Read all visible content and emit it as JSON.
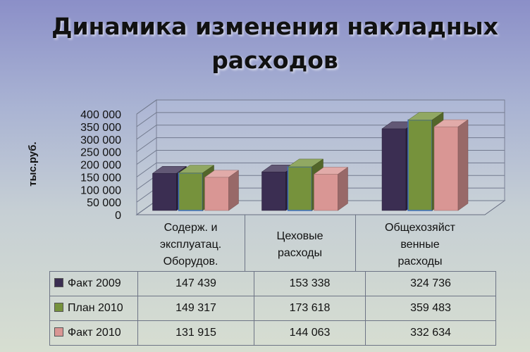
{
  "title": "Динамика изменения накладных расходов",
  "chart_data": {
    "type": "bar",
    "title": "Динамика изменения накладных расходов",
    "ylabel": "тыс.руб.",
    "xlabel": "",
    "ylim": [
      0,
      400000
    ],
    "yticks": [
      "0",
      "50 000",
      "100 000",
      "150 000",
      "200 000",
      "250 000",
      "300 000",
      "350 000",
      "400 000"
    ],
    "grid": true,
    "legend": "table-below",
    "categories": [
      "Содерж. и эксплуатац. Оборудов.",
      "Цеховые расходы",
      "Общехозяйст венные расходы"
    ],
    "category_lines": [
      [
        "Содерж. и",
        "эксплуатац.",
        "Оборудов."
      ],
      [
        "Цеховые",
        "расходы"
      ],
      [
        "Общехозяйст",
        "венные",
        "расходы"
      ]
    ],
    "series": [
      {
        "name": "Факт 2009",
        "color": "#3b2e52",
        "values": [
          147439,
          153338,
          324736
        ]
      },
      {
        "name": "План 2010",
        "color": "#76923c",
        "values": [
          149317,
          173618,
          359483
        ]
      },
      {
        "name": "Факт 2010",
        "color": "#d99694",
        "values": [
          131915,
          144063,
          332634
        ]
      }
    ],
    "table_values": [
      [
        "147 439",
        "153 338",
        "324 736"
      ],
      [
        "149 317",
        "173 618",
        "359 483"
      ],
      [
        "131 915",
        "144 063",
        "332 634"
      ]
    ]
  }
}
